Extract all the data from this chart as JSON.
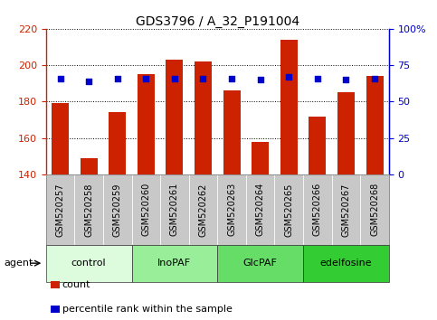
{
  "title": "GDS3796 / A_32_P191004",
  "samples": [
    "GSM520257",
    "GSM520258",
    "GSM520259",
    "GSM520260",
    "GSM520261",
    "GSM520262",
    "GSM520263",
    "GSM520264",
    "GSM520265",
    "GSM520266",
    "GSM520267",
    "GSM520268"
  ],
  "counts": [
    179,
    149,
    174,
    195,
    203,
    202,
    186,
    158,
    214,
    172,
    185,
    194
  ],
  "percentiles": [
    66,
    64,
    66,
    66,
    66,
    66,
    66,
    65,
    67,
    66,
    65,
    66
  ],
  "ylim_left": [
    140,
    220
  ],
  "ylim_right": [
    0,
    100
  ],
  "yticks_left": [
    140,
    160,
    180,
    200,
    220
  ],
  "yticks_right": [
    0,
    25,
    50,
    75,
    100
  ],
  "yticklabels_right": [
    "0",
    "25",
    "50",
    "75",
    "100%"
  ],
  "bar_color": "#cc2200",
  "dot_color": "#0000cc",
  "bar_width": 0.6,
  "agent_groups": [
    {
      "label": "control",
      "start": 0,
      "end": 3,
      "color": "#ddfcdd"
    },
    {
      "label": "InoPAF",
      "start": 3,
      "end": 6,
      "color": "#99ee99"
    },
    {
      "label": "GlcPAF",
      "start": 6,
      "end": 9,
      "color": "#66dd66"
    },
    {
      "label": "edelfosine",
      "start": 9,
      "end": 12,
      "color": "#33cc33"
    }
  ],
  "agent_label": "agent",
  "legend_items": [
    {
      "label": "count",
      "color": "#cc2200"
    },
    {
      "label": "percentile rank within the sample",
      "color": "#0000cc"
    }
  ],
  "tick_cell_color": "#c8c8c8",
  "background_color": "#ffffff",
  "title_fontsize": 10,
  "tick_fontsize": 7,
  "legend_fontsize": 8,
  "dot_size": 25,
  "dot_marker_size": 5
}
